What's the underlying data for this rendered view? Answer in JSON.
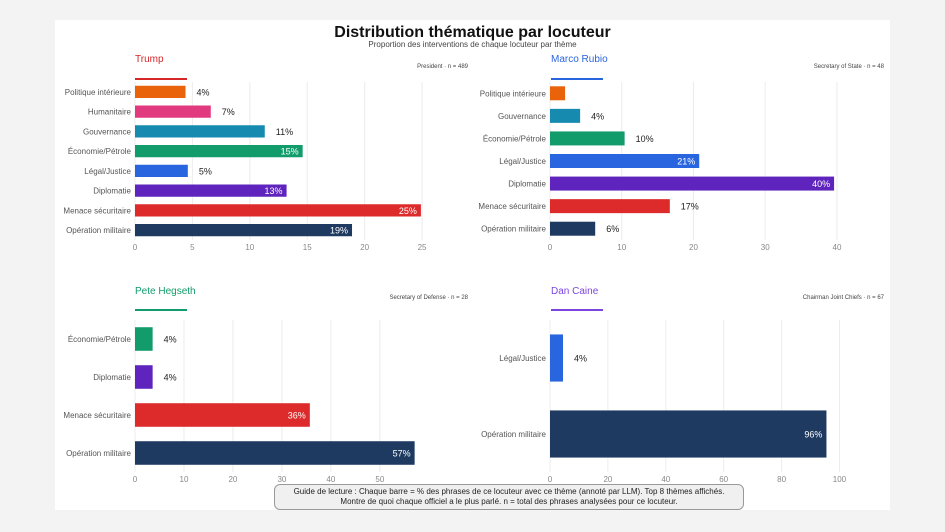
{
  "chart_data": {
    "type": "bar",
    "orientation": "horizontal",
    "title": "Distribution thématique par locuteur",
    "subtitle": "Proportion des interventions de chaque locuteur par thème",
    "guide": {
      "line1": "Guide de lecture : Chaque barre = % des phrases de ce locuteur avec ce thème (annoté par LLM). Top 8 thèmes affichés.",
      "line2": "Montre de quoi chaque officiel a le plus parlé. n = total des phrases analysées pour ce locuteur."
    },
    "panels": [
      {
        "name": "Trump",
        "meta": "President · n = 489",
        "color": "#d62728",
        "xlim": [
          0,
          29
        ],
        "xticks": [
          0,
          5,
          10,
          15,
          20,
          25
        ],
        "categories": [
          "Politique intérieure",
          "Humanitaire",
          "Gouvernance",
          "Économie/Pétrole",
          "Légal/Justice",
          "Diplomatie",
          "Menace sécuritaire",
          "Opération militaire"
        ],
        "values": [
          4.4,
          6.6,
          11.3,
          14.6,
          4.6,
          13.2,
          24.9,
          18.9
        ],
        "labels": [
          "4%",
          "7%",
          "11%",
          "15%",
          "5%",
          "13%",
          "25%",
          "19%"
        ],
        "colors": [
          "#e8630a",
          "#e13a7f",
          "#178ab0",
          "#129c6b",
          "#2a65e0",
          "#5e24bd",
          "#dd2a2a",
          "#1e3a60"
        ]
      },
      {
        "name": "Marco Rubio",
        "meta": "Secretary of State · n = 48",
        "color": "#2a65e0",
        "xlim": [
          0,
          46
        ],
        "xticks": [
          0,
          10,
          20,
          30,
          40
        ],
        "categories": [
          "Politique intérieure",
          "Gouvernance",
          "Économie/Pétrole",
          "Légal/Justice",
          "Diplomatie",
          "Menace sécuritaire",
          "Opération militaire"
        ],
        "values": [
          2.1,
          4.2,
          10.4,
          20.8,
          39.6,
          16.7,
          6.3
        ],
        "labels": [
          "",
          "4%",
          "10%",
          "21%",
          "40%",
          "17%",
          "6%"
        ],
        "colors": [
          "#e8630a",
          "#178ab0",
          "#129c6b",
          "#2a65e0",
          "#5e24bd",
          "#dd2a2a",
          "#1e3a60"
        ]
      },
      {
        "name": "Pete Hegseth",
        "meta": "Secretary of Defense · n = 28",
        "color": "#129c6b",
        "xlim": [
          0,
          68
        ],
        "xticks": [
          0,
          10,
          20,
          30,
          40,
          50
        ],
        "categories": [
          "Économie/Pétrole",
          "Diplomatie",
          "Menace sécuritaire",
          "Opération militaire"
        ],
        "values": [
          3.6,
          3.6,
          35.7,
          57.1
        ],
        "labels": [
          "4%",
          "4%",
          "36%",
          "57%"
        ],
        "colors": [
          "#129c6b",
          "#5e24bd",
          "#dd2a2a",
          "#1e3a60"
        ]
      },
      {
        "name": "Dan Caine",
        "meta": "Chairman Joint Chiefs · n = 67",
        "color": "#7b45e0",
        "xlim": [
          0,
          114
        ],
        "xticks": [
          0,
          20,
          40,
          60,
          80,
          100
        ],
        "categories": [
          "Légal/Justice",
          "Opération militaire"
        ],
        "values": [
          4.5,
          95.5
        ],
        "labels": [
          "4%",
          "96%"
        ],
        "colors": [
          "#2a65e0",
          "#1e3a60"
        ]
      }
    ]
  }
}
